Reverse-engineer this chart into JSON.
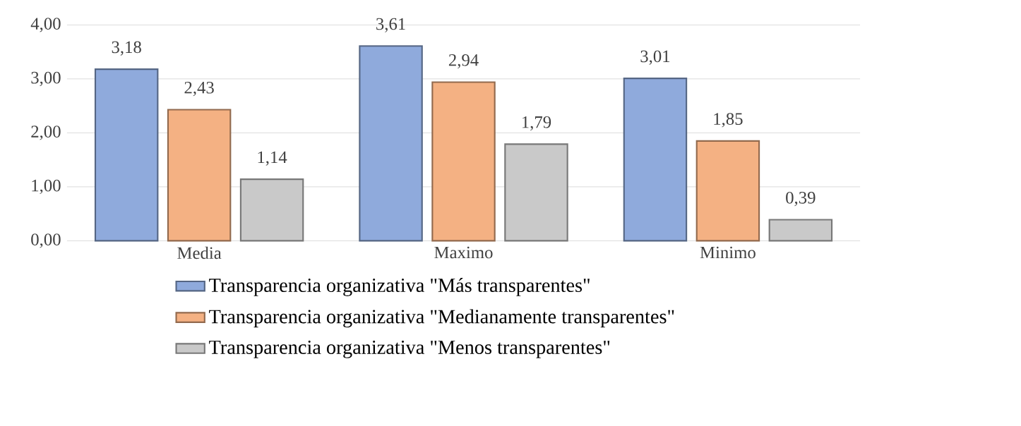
{
  "chart_data": {
    "type": "bar",
    "categories": [
      "Media",
      "Maximo",
      "Minimo"
    ],
    "series": [
      {
        "name": "Transparencia organizativa \"Más transparentes\"",
        "color": "#8faadc",
        "values": [
          3.18,
          3.61,
          3.01
        ],
        "value_labels": [
          "3,18",
          "3,61",
          "3,01"
        ]
      },
      {
        "name": "Transparencia organizativa \"Medianamente transparentes\"",
        "color": "#f4b183",
        "values": [
          2.43,
          2.94,
          1.85
        ],
        "value_labels": [
          "2,43",
          "2,94",
          "1,85"
        ]
      },
      {
        "name": "Transparencia organizativa \"Menos transparentes\"",
        "color": "#c9c9c9",
        "values": [
          1.14,
          1.79,
          0.39
        ],
        "value_labels": [
          "1,14",
          "1,79",
          "0,39"
        ]
      }
    ],
    "ylim": [
      0,
      4
    ],
    "yticks": [
      {
        "value": 0,
        "label": "0,00"
      },
      {
        "value": 1,
        "label": "1,00"
      },
      {
        "value": 2,
        "label": "2,00"
      },
      {
        "value": 3,
        "label": "3,00"
      },
      {
        "value": 4,
        "label": "4,00"
      }
    ],
    "grid": "y",
    "legend": "bottom"
  }
}
